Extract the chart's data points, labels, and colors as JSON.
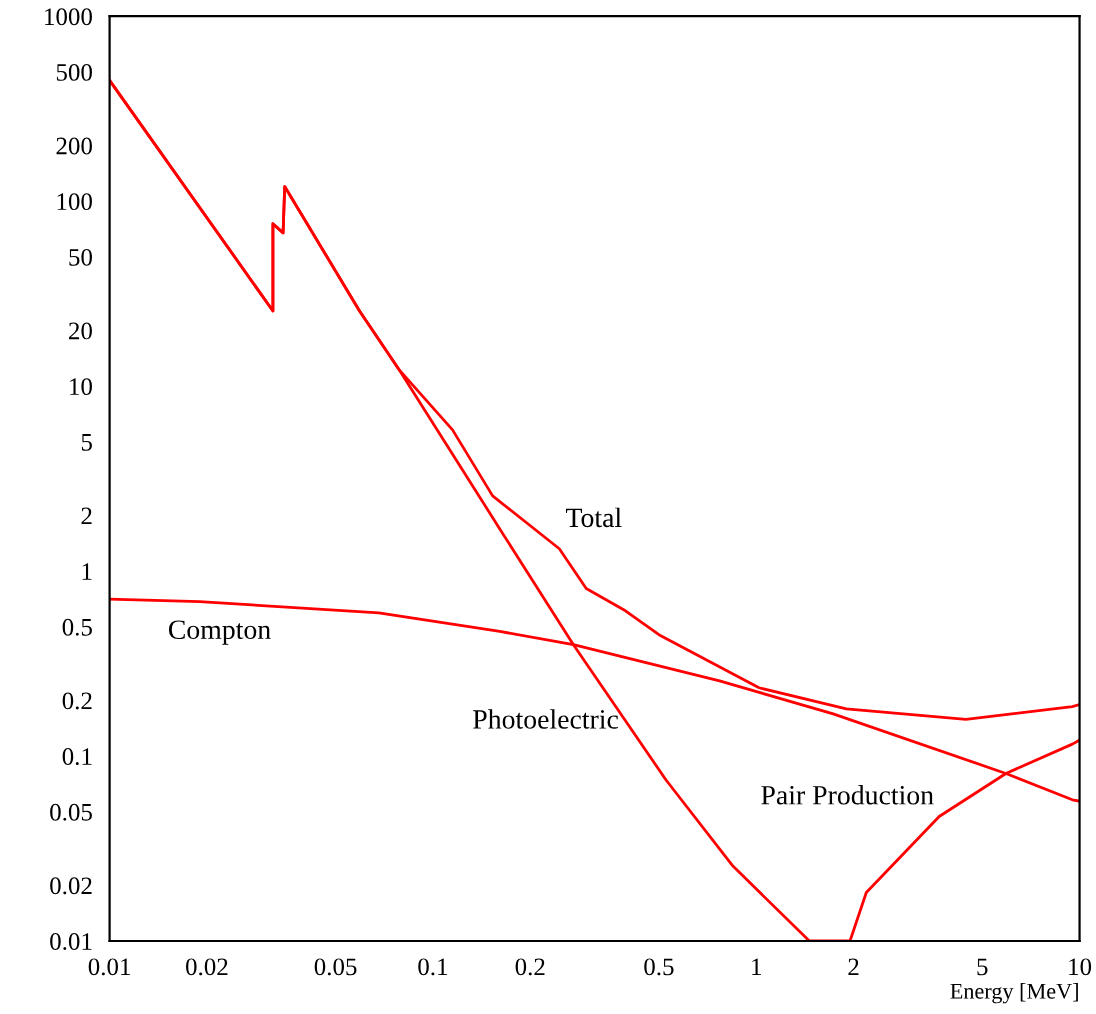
{
  "chart_data": {
    "type": "line",
    "xlabel": "Energy [MeV]",
    "log": "xy",
    "xlim": [
      0.01,
      10
    ],
    "ylim": [
      0.01,
      1000
    ],
    "xticks": [
      0.01,
      0.02,
      0.05,
      0.1,
      0.2,
      0.5,
      1,
      2,
      5,
      10
    ],
    "yticks": [
      0.01,
      0.02,
      0.05,
      0.1,
      0.2,
      0.5,
      1,
      2,
      5,
      10,
      20,
      50,
      100,
      200,
      500,
      1000
    ],
    "series": [
      {
        "name": "Total",
        "color": "#ff0000",
        "x": [
          0.01,
          0.032,
          0.032,
          0.0344,
          0.0348,
          0.0593,
          0.0788,
          0.115,
          0.153,
          0.246,
          0.298,
          0.394,
          0.5,
          1.02,
          1.9,
          4.45,
          9.5,
          10
        ],
        "values": [
          450,
          25.5,
          75.5,
          67.4,
          120,
          25.5,
          12.2,
          5.8,
          2.55,
          1.32,
          0.805,
          0.61,
          0.453,
          0.234,
          0.18,
          0.158,
          0.185,
          0.19
        ]
      },
      {
        "name": "Compton",
        "color": "#ff0000",
        "x": [
          0.01,
          0.019,
          0.068,
          0.161,
          0.272,
          0.77,
          1.73,
          5.92,
          9.5,
          10
        ],
        "values": [
          0.706,
          0.684,
          0.594,
          0.472,
          0.4,
          0.255,
          0.169,
          0.0805,
          0.058,
          0.057
        ]
      },
      {
        "name": "Photoelectric",
        "color": "#ff0000",
        "x": [
          0.01,
          0.032,
          0.032,
          0.0344,
          0.0348,
          0.0593,
          0.0788,
          0.161,
          0.272,
          0.526,
          0.847,
          1.46,
          1.95
        ],
        "values": [
          450,
          25.5,
          75.5,
          67.4,
          120,
          25.5,
          12.2,
          1.69,
          0.4,
          0.0742,
          0.0254,
          0.01,
          0.01
        ]
      },
      {
        "name": "Pair Production",
        "color": "#ff0000",
        "x": [
          1.95,
          2.19,
          3.68,
          5.92,
          9.5,
          10
        ],
        "values": [
          0.01,
          0.0183,
          0.0471,
          0.0805,
          0.116,
          0.122
        ]
      }
    ]
  }
}
